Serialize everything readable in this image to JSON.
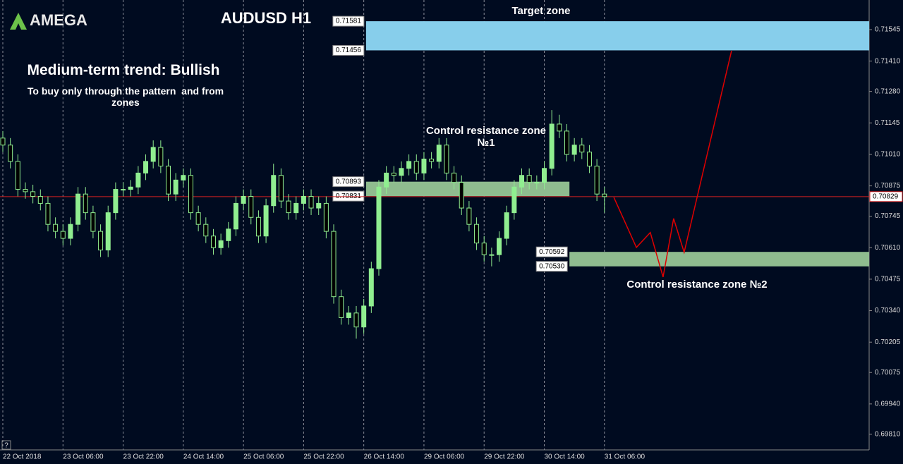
{
  "logo": "AMEGA",
  "chart_data": {
    "type": "candlestick",
    "title": "AUDUSD H1",
    "trend": "Medium-term trend: Bullish",
    "note": "To buy only through the pattern  and from zones",
    "bull_color": "#90ee90",
    "bear_color": "#000000",
    "wick_color": "#90ee90",
    "x": [
      0,
      2,
      4,
      6,
      8,
      10,
      12,
      14,
      16,
      18,
      20,
      22,
      24,
      26,
      28,
      30,
      32,
      34,
      36,
      38,
      40,
      42,
      44,
      46,
      48,
      50,
      52,
      54,
      56,
      58,
      60,
      62,
      64,
      66,
      68,
      70,
      72,
      74,
      76,
      78,
      80,
      82,
      84,
      86,
      88,
      90,
      92,
      94,
      96,
      98,
      100,
      102,
      104,
      106,
      108,
      110,
      112,
      114,
      116,
      118,
      120,
      122,
      124,
      126,
      128,
      130,
      132,
      134,
      136,
      138,
      140,
      142,
      144,
      146,
      148,
      150,
      152,
      154,
      156,
      158,
      160
    ],
    "open": [
      0.7108,
      0.7105,
      0.7098,
      0.7086,
      0.7085,
      0.7083,
      0.708,
      0.7071,
      0.7068,
      0.7065,
      0.7071,
      0.7084,
      0.7076,
      0.7068,
      0.706,
      0.7076,
      0.7086,
      0.7086,
      0.7087,
      0.7093,
      0.7098,
      0.7104,
      0.7096,
      0.7084,
      0.709,
      0.7092,
      0.7076,
      0.7071,
      0.7066,
      0.7061,
      0.7064,
      0.7069,
      0.708,
      0.7083,
      0.7074,
      0.7066,
      0.7079,
      0.7092,
      0.7081,
      0.7076,
      0.708,
      0.7083,
      0.7078,
      0.708,
      0.7068,
      0.704,
      0.7031,
      0.7033,
      0.7027,
      0.7036,
      0.7052,
      0.7087,
      0.7093,
      0.7092,
      0.7095,
      0.7098,
      0.7093,
      0.7099,
      0.7098,
      0.7105,
      0.7093,
      0.7089,
      0.7078,
      0.7071,
      0.7063,
      0.7058,
      0.7058,
      0.7065,
      0.7076,
      0.7087,
      0.7092,
      0.7089,
      0.7089,
      0.7095,
      0.7114,
      0.7111,
      0.7101,
      0.7105,
      0.7102,
      0.7096,
      0.7084
    ],
    "high": [
      0.7111,
      0.7108,
      0.7101,
      0.7089,
      0.7088,
      0.7086,
      0.7083,
      0.7074,
      0.7071,
      0.7074,
      0.7087,
      0.7087,
      0.7079,
      0.7071,
      0.7079,
      0.7089,
      0.7089,
      0.709,
      0.7096,
      0.7101,
      0.7107,
      0.7107,
      0.7099,
      0.7093,
      0.7095,
      0.7095,
      0.7079,
      0.7074,
      0.7069,
      0.7067,
      0.7072,
      0.7083,
      0.7086,
      0.7086,
      0.7077,
      0.7082,
      0.7097,
      0.7095,
      0.7084,
      0.7083,
      0.7086,
      0.7086,
      0.7083,
      0.7083,
      0.7071,
      0.7043,
      0.7036,
      0.7036,
      0.7039,
      0.7055,
      0.709,
      0.7096,
      0.7096,
      0.7098,
      0.7101,
      0.7101,
      0.7102,
      0.7102,
      0.7108,
      0.7108,
      0.7096,
      0.7092,
      0.7081,
      0.7074,
      0.7066,
      0.7061,
      0.7068,
      0.7079,
      0.709,
      0.7095,
      0.7095,
      0.7092,
      0.7098,
      0.712,
      0.7118,
      0.7114,
      0.7108,
      0.7108,
      0.7105,
      0.7099,
      0.7087
    ],
    "low": [
      0.7102,
      0.7095,
      0.7083,
      0.7082,
      0.708,
      0.7077,
      0.7068,
      0.7065,
      0.7062,
      0.7062,
      0.7068,
      0.7073,
      0.7065,
      0.7057,
      0.7057,
      0.7073,
      0.7083,
      0.7083,
      0.7084,
      0.709,
      0.7095,
      0.7093,
      0.7081,
      0.7081,
      0.7087,
      0.7073,
      0.7068,
      0.7063,
      0.7058,
      0.7058,
      0.7061,
      0.7066,
      0.7077,
      0.7071,
      0.7063,
      0.7063,
      0.7076,
      0.7078,
      0.7073,
      0.7073,
      0.7077,
      0.7075,
      0.7075,
      0.7065,
      0.7037,
      0.7028,
      0.7028,
      0.7022,
      0.7024,
      0.7033,
      0.7049,
      0.7084,
      0.7089,
      0.7089,
      0.7092,
      0.709,
      0.709,
      0.7095,
      0.7095,
      0.709,
      0.7086,
      0.7075,
      0.7068,
      0.706,
      0.7055,
      0.7053,
      0.7055,
      0.7062,
      0.7073,
      0.7084,
      0.7086,
      0.7086,
      0.7086,
      0.7092,
      0.7108,
      0.7098,
      0.7098,
      0.7099,
      0.7093,
      0.7081,
      0.7076
    ],
    "close": [
      0.7105,
      0.7098,
      0.7086,
      0.7085,
      0.7083,
      0.708,
      0.7071,
      0.7068,
      0.7065,
      0.7071,
      0.7084,
      0.7076,
      0.7068,
      0.706,
      0.7076,
      0.7086,
      0.7086,
      0.7087,
      0.7093,
      0.7098,
      0.7104,
      0.7096,
      0.7084,
      0.709,
      0.7092,
      0.7076,
      0.7071,
      0.7066,
      0.7061,
      0.7064,
      0.7069,
      0.708,
      0.7083,
      0.7074,
      0.7066,
      0.7079,
      0.7092,
      0.7081,
      0.7076,
      0.708,
      0.7083,
      0.7078,
      0.708,
      0.7068,
      0.704,
      0.7031,
      0.7033,
      0.7027,
      0.7036,
      0.7052,
      0.7087,
      0.7093,
      0.7092,
      0.7095,
      0.7098,
      0.7093,
      0.7099,
      0.7098,
      0.7105,
      0.7093,
      0.7089,
      0.7078,
      0.7071,
      0.7063,
      0.7058,
      0.7058,
      0.7065,
      0.7076,
      0.7087,
      0.7092,
      0.7089,
      0.7089,
      0.7095,
      0.7114,
      0.7111,
      0.7101,
      0.7105,
      0.7102,
      0.7096,
      0.7084,
      0.70829
    ],
    "xlim": [
      -0.75,
      230.4
    ],
    "ylim": [
      0.69743,
      0.71672
    ],
    "yticks": [
      {
        "value": 0.71545,
        "label": "0.71545"
      },
      {
        "value": 0.7141,
        "label": "0.71410"
      },
      {
        "value": 0.7128,
        "label": "0.71280"
      },
      {
        "value": 0.71145,
        "label": "0.71145"
      },
      {
        "value": 0.7101,
        "label": "0.71010"
      },
      {
        "value": 0.70875,
        "label": "0.70875"
      },
      {
        "value": 0.70745,
        "label": "0.70745"
      },
      {
        "value": 0.7061,
        "label": "0.70610"
      },
      {
        "value": 0.70475,
        "label": "0.70475"
      },
      {
        "value": 0.7034,
        "label": "0.70340"
      },
      {
        "value": 0.70205,
        "label": "0.70205"
      },
      {
        "value": 0.70075,
        "label": "0.70075"
      },
      {
        "value": 0.6994,
        "label": "0.69940"
      },
      {
        "value": 0.6981,
        "label": "0.69810"
      }
    ],
    "xticks": [
      {
        "value": 0,
        "label": "22 Oct 2018"
      },
      {
        "value": 16,
        "label": "23 Oct 06:00"
      },
      {
        "value": 32,
        "label": "23 Oct 22:00"
      },
      {
        "value": 48,
        "label": "24 Oct 14:00"
      },
      {
        "value": 64,
        "label": "25 Oct 06:00"
      },
      {
        "value": 80,
        "label": "25 Oct 22:00"
      },
      {
        "value": 96,
        "label": "26 Oct 14:00"
      },
      {
        "value": 112,
        "label": "29 Oct 06:00"
      },
      {
        "value": 128,
        "label": "29 Oct 22:00"
      },
      {
        "value": 144,
        "label": "30 Oct 14:00"
      },
      {
        "value": 160,
        "label": "31 Oct 06:00"
      }
    ],
    "zones": [
      {
        "name": "Target zone",
        "color": "#87ceeb",
        "from": 96.6,
        "top": {
          "value": 0.71581,
          "label": "0.71581"
        },
        "bottom": {
          "value": 0.71456,
          "label": "0.71456"
        }
      },
      {
        "name": "Control resistance zone №1",
        "color": "#8fbc8f",
        "from": 96.6,
        "to": 150.7,
        "top": {
          "value": 0.70893,
          "label": "0.70893"
        },
        "bottom": {
          "value": 0.70831,
          "label": "0.70831"
        }
      },
      {
        "name": "Control resistance zone №2",
        "color": "#8fbc8f",
        "from": 150.7,
        "top": {
          "value": 0.70592,
          "label": "0.70592"
        },
        "bottom": {
          "value": 0.7053,
          "label": "0.70530"
        }
      }
    ],
    "current_price": {
      "value": 0.70829,
      "label": "0.70829"
    },
    "projection": {
      "color": "#e00000",
      "x": [
        162.5,
        168.5,
        172.2,
        175.6,
        178.4,
        181.2,
        193.8
      ],
      "values": [
        0.70826,
        0.70611,
        0.70675,
        0.70484,
        0.70735,
        0.7059,
        0.71454
      ]
    }
  }
}
